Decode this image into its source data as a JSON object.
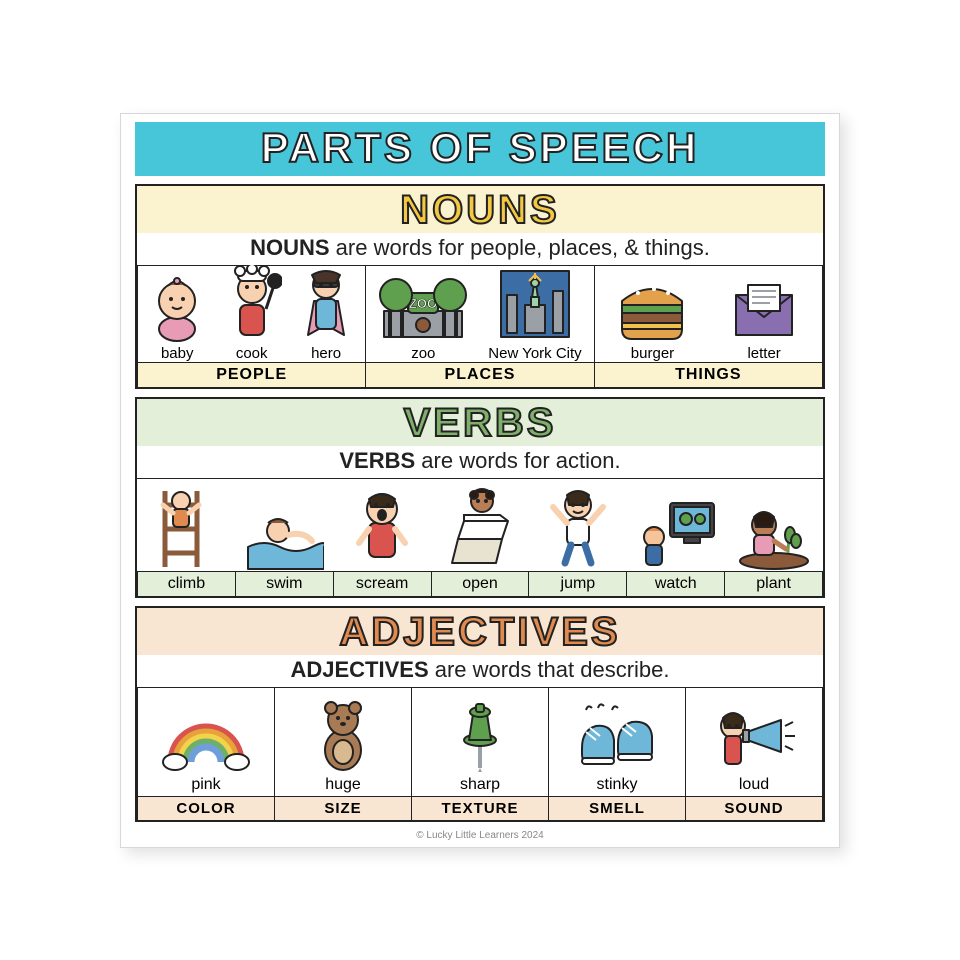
{
  "title": "PARTS OF SPEECH",
  "banner_bg": "#48c6d9",
  "credit": "© Lucky Little Learners 2024",
  "sections": {
    "nouns": {
      "title": "NOUNS",
      "title_color": "#f4c842",
      "header_bg": "#fbf3cf",
      "desc_strong": "NOUNS",
      "desc_rest": " are words for people, places, & things.",
      "groups": [
        {
          "category": "PEOPLE",
          "cat_bg": "#fbf3cf",
          "items": [
            {
              "label": "baby",
              "icon": "baby"
            },
            {
              "label": "cook",
              "icon": "cook"
            },
            {
              "label": "hero",
              "icon": "hero"
            }
          ]
        },
        {
          "category": "PLACES",
          "cat_bg": "#fbf3cf",
          "items": [
            {
              "label": "zoo",
              "icon": "zoo"
            },
            {
              "label": "New York City",
              "icon": "nyc"
            }
          ]
        },
        {
          "category": "THINGS",
          "cat_bg": "#fbf3cf",
          "items": [
            {
              "label": "burger",
              "icon": "burger"
            },
            {
              "label": "letter",
              "icon": "letter"
            }
          ]
        }
      ]
    },
    "verbs": {
      "title": "VERBS",
      "title_color": "#7fb069",
      "header_bg": "#e3efd9",
      "desc_strong": "VERBS",
      "desc_rest": " are words for action.",
      "label_bg": "#e3efd9",
      "items": [
        {
          "label": "climb",
          "icon": "climb"
        },
        {
          "label": "swim",
          "icon": "swim"
        },
        {
          "label": "scream",
          "icon": "scream"
        },
        {
          "label": "open",
          "icon": "open"
        },
        {
          "label": "jump",
          "icon": "jump"
        },
        {
          "label": "watch",
          "icon": "watch"
        },
        {
          "label": "plant",
          "icon": "plant"
        }
      ]
    },
    "adjectives": {
      "title": "ADJECTIVES",
      "title_color": "#e08a4f",
      "header_bg": "#f8e6d2",
      "desc_strong": "ADJECTIVES",
      "desc_rest": " are words that describe.",
      "items": [
        {
          "label": "pink",
          "category": "COLOR",
          "icon": "rainbow",
          "cat_bg": "#f8e6d2"
        },
        {
          "label": "huge",
          "category": "SIZE",
          "icon": "bear",
          "cat_bg": "#f8e6d2"
        },
        {
          "label": "sharp",
          "category": "TEXTURE",
          "icon": "pushpin",
          "cat_bg": "#f8e6d2"
        },
        {
          "label": "stinky",
          "category": "SMELL",
          "icon": "shoes",
          "cat_bg": "#f8e6d2"
        },
        {
          "label": "loud",
          "category": "SOUND",
          "icon": "megaphone",
          "cat_bg": "#f8e6d2"
        }
      ]
    }
  },
  "palette": {
    "stroke": "#222222",
    "skin1": "#f8d2b0",
    "skin2": "#b97e56",
    "skin3": "#f5c49a",
    "red": "#d9534f",
    "pink": "#e89bb5",
    "blue": "#6fb7d9",
    "darkblue": "#3c6ea5",
    "green": "#5fa04e",
    "yellow": "#f3c14b",
    "orange": "#e08a4f",
    "brown": "#8a5a3a",
    "purple": "#8a6fb0",
    "gray": "#9aa0a6",
    "white": "#ffffff",
    "black": "#222222"
  }
}
